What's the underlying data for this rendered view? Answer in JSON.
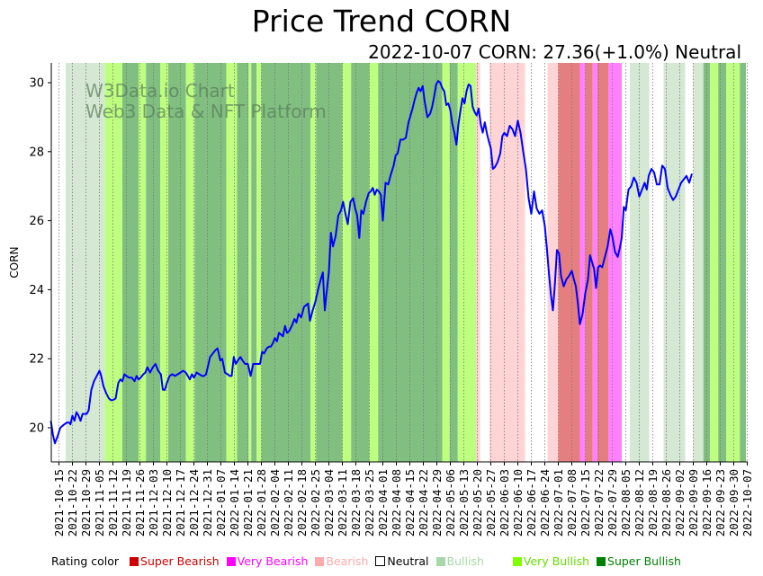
{
  "title": "Price Trend CORN",
  "subtitle": "2022-10-07 CORN: 27.36(+1.0%) Neutral",
  "watermark": [
    "W3Data.io Chart",
    "Web3 Data & NFT Platform"
  ],
  "legend": {
    "label": "Rating color",
    "items": [
      {
        "name": "Super Bearish",
        "color": "#cc0000",
        "text_color": "#cc0000"
      },
      {
        "name": "Very Bearish",
        "color": "#ff00ff",
        "text_color": "#ff00ff"
      },
      {
        "name": "Bearish",
        "color": "#ffaaaa",
        "text_color": "#ffaaaa"
      },
      {
        "name": "Neutral",
        "color": "#ffffff",
        "text_color": "#000000"
      },
      {
        "name": "Bullish",
        "color": "#a8d8a8",
        "text_color": "#a8d8a8"
      },
      {
        "name": "Very Bullish",
        "color": "#80ff00",
        "text_color": "#66dd00"
      },
      {
        "name": "Super Bullish",
        "color": "#008000",
        "text_color": "#008000"
      }
    ]
  },
  "chart_data": {
    "type": "line",
    "title": "Price Trend CORN",
    "xlabel": "",
    "ylabel": "CORN",
    "ylim": [
      19,
      30.6
    ],
    "yticks": [
      20,
      22,
      24,
      26,
      28,
      30
    ],
    "xlim": [
      "2021-10-10",
      "2022-10-07"
    ],
    "xticks": [
      "2021-10-15",
      "2021-10-22",
      "2021-10-29",
      "2021-11-05",
      "2021-11-12",
      "2021-11-19",
      "2021-11-26",
      "2021-12-03",
      "2021-12-10",
      "2021-12-17",
      "2021-12-24",
      "2021-12-31",
      "2022-01-07",
      "2022-01-14",
      "2022-01-21",
      "2022-01-28",
      "2022-02-04",
      "2022-02-11",
      "2022-02-18",
      "2022-02-25",
      "2022-03-04",
      "2022-03-11",
      "2022-03-18",
      "2022-03-25",
      "2022-04-01",
      "2022-04-08",
      "2022-04-15",
      "2022-04-22",
      "2022-04-29",
      "2022-05-06",
      "2022-05-13",
      "2022-05-20",
      "2022-05-27",
      "2022-06-03",
      "2022-06-10",
      "2022-06-17",
      "2022-06-24",
      "2022-07-01",
      "2022-07-08",
      "2022-07-15",
      "2022-07-22",
      "2022-07-29",
      "2022-08-05",
      "2022-08-12",
      "2022-08-19",
      "2022-08-26",
      "2022-09-02",
      "2022-09-09",
      "2022-09-16",
      "2022-09-23",
      "2022-09-30",
      "2022-10-07"
    ],
    "grid": "vertical dotted at x ticks",
    "series": [
      {
        "name": "CORN",
        "color": "#0000ff",
        "x_weeks": [
          -0.6,
          -0.45,
          -0.3,
          -0.1,
          0.1,
          0.4,
          0.6,
          0.75,
          0.85,
          1.0,
          1.15,
          1.3,
          1.45,
          1.6,
          1.75,
          1.9,
          2.05,
          2.2,
          2.4,
          2.6,
          2.8,
          3.0,
          3.1,
          3.3,
          3.5,
          3.7,
          3.85,
          4.0,
          4.2,
          4.4,
          4.55,
          4.7,
          4.85,
          5.0,
          5.2,
          5.4,
          5.6,
          5.75,
          5.9,
          6.05,
          6.25,
          6.4,
          6.55,
          6.75,
          6.95,
          7.15,
          7.35,
          7.55,
          7.7,
          7.85,
          8.0,
          8.2,
          8.4,
          8.6,
          8.8,
          9.0,
          9.2,
          9.4,
          9.55,
          9.7,
          9.85,
          10.0,
          10.2,
          10.4,
          10.6,
          10.75,
          10.9,
          11.05,
          11.2,
          11.4,
          11.6,
          11.75,
          11.95,
          12.1,
          12.3,
          12.5,
          12.65,
          12.8,
          12.95,
          13.1,
          13.25,
          13.45,
          13.6,
          13.8,
          14.0,
          14.2,
          14.4,
          14.6,
          14.75,
          14.9,
          15.05,
          15.2,
          15.4,
          15.55,
          15.7,
          15.85,
          16.0,
          16.15,
          16.3,
          16.45,
          16.6,
          16.75,
          16.9,
          17.05,
          17.25,
          17.45,
          17.6,
          17.75,
          17.95,
          18.15,
          18.3,
          18.45,
          18.6,
          18.8,
          19.0,
          19.2,
          19.4,
          19.55,
          19.7,
          19.85,
          20.0,
          20.15,
          20.3,
          20.5,
          20.7,
          20.9,
          21.05,
          21.2,
          21.4,
          21.6,
          21.8,
          21.95,
          22.1,
          22.25,
          22.4,
          22.55,
          22.75,
          22.95,
          23.1,
          23.25,
          23.4,
          23.55,
          23.7,
          23.85,
          24.0,
          24.2,
          24.4,
          24.6,
          24.8,
          24.95,
          25.1,
          25.3,
          25.5,
          25.7,
          25.9,
          26.05,
          26.2,
          26.35,
          26.5,
          26.65,
          26.8,
          26.95,
          27.1,
          27.3,
          27.5,
          27.65,
          27.8,
          27.95,
          28.1,
          28.25,
          28.4,
          28.55,
          28.7,
          28.85,
          29.0,
          29.15,
          29.3,
          29.45,
          29.6,
          29.75,
          29.9,
          30.05,
          30.2,
          30.35,
          30.5,
          30.65,
          30.8,
          30.95,
          31.1,
          31.25,
          31.4,
          31.55,
          31.7,
          31.85,
          32.0,
          32.15,
          32.3,
          32.5,
          32.7,
          32.85,
          33.0,
          33.2,
          33.4,
          33.6,
          33.8,
          34.0,
          34.2,
          34.4,
          34.6,
          34.8,
          35.0,
          35.2,
          35.4,
          35.6,
          35.8,
          36.0,
          36.15,
          36.3,
          36.45,
          36.6,
          36.75,
          36.9,
          37.05,
          37.2,
          37.4,
          37.6,
          37.8,
          38.0,
          38.15,
          38.3,
          38.45,
          38.6,
          38.8,
          39.0,
          39.2,
          39.35,
          39.5,
          39.65,
          39.8,
          39.95,
          40.1,
          40.25,
          40.45,
          40.65,
          40.85,
          41.0,
          41.2,
          41.4,
          41.55,
          41.7,
          41.85,
          42.0,
          42.2,
          42.4,
          42.6,
          42.8,
          43.0,
          43.2,
          43.4,
          43.55,
          43.7,
          43.9,
          44.1,
          44.3,
          44.5,
          44.7,
          44.9,
          45.1,
          45.3,
          45.5,
          45.7,
          45.9,
          46.1,
          46.3,
          46.5,
          46.7,
          46.9,
          47.1,
          47.3,
          47.5,
          47.7,
          47.9,
          48.1,
          48.3,
          48.5,
          48.7,
          48.9,
          49.1,
          49.3,
          49.5,
          49.7,
          49.9,
          50.1,
          50.3,
          50.5,
          50.7,
          50.9,
          51.05,
          51.2,
          51.35,
          51.5,
          51.65,
          51.8,
          51.95
        ],
        "values": [
          20.2,
          19.8,
          19.55,
          19.75,
          20.0,
          20.1,
          20.15,
          20.15,
          20.1,
          20.35,
          20.2,
          20.45,
          20.35,
          20.2,
          20.4,
          20.4,
          20.4,
          20.5,
          21.1,
          21.35,
          21.5,
          21.65,
          21.55,
          21.2,
          21.0,
          20.85,
          20.8,
          20.8,
          20.85,
          21.3,
          21.4,
          21.35,
          21.55,
          21.5,
          21.45,
          21.45,
          21.35,
          21.5,
          21.4,
          21.45,
          21.55,
          21.6,
          21.75,
          21.6,
          21.75,
          21.85,
          21.65,
          21.55,
          21.1,
          21.1,
          21.3,
          21.5,
          21.55,
          21.5,
          21.55,
          21.6,
          21.65,
          21.6,
          21.5,
          21.4,
          21.55,
          21.45,
          21.6,
          21.55,
          21.5,
          21.5,
          21.55,
          21.8,
          22.05,
          22.15,
          22.25,
          22.3,
          21.95,
          22.0,
          21.6,
          21.55,
          21.5,
          21.5,
          22.05,
          21.85,
          21.95,
          22.05,
          21.95,
          21.85,
          21.85,
          21.5,
          21.85,
          21.85,
          21.85,
          21.85,
          22.2,
          22.15,
          22.3,
          22.35,
          22.35,
          22.45,
          22.6,
          22.5,
          22.75,
          22.7,
          22.65,
          22.95,
          22.75,
          22.8,
          22.95,
          23.15,
          23.05,
          23.3,
          23.2,
          23.5,
          23.55,
          23.6,
          23.1,
          23.4,
          23.65,
          24.0,
          24.3,
          24.5,
          23.4,
          24.0,
          24.5,
          25.65,
          25.25,
          25.55,
          26.15,
          26.3,
          26.55,
          26.25,
          25.9,
          26.55,
          26.65,
          26.35,
          26.15,
          25.5,
          26.3,
          26.2,
          26.55,
          26.8,
          26.85,
          26.95,
          26.75,
          26.9,
          26.85,
          26.75,
          26.0,
          27.1,
          27.05,
          27.35,
          27.6,
          27.9,
          27.95,
          28.35,
          28.35,
          28.4,
          28.85,
          29.05,
          29.25,
          29.5,
          29.7,
          29.85,
          29.75,
          29.9,
          29.45,
          29.0,
          29.1,
          29.3,
          29.6,
          29.95,
          30.05,
          30.0,
          29.85,
          29.75,
          29.35,
          29.4,
          29.2,
          28.8,
          28.55,
          28.2,
          28.8,
          29.2,
          29.55,
          29.4,
          29.75,
          29.95,
          29.9,
          29.3,
          29.15,
          29.05,
          29.25,
          28.8,
          28.55,
          28.85,
          28.55,
          28.3,
          28.1,
          27.5,
          27.55,
          27.7,
          27.95,
          28.45,
          28.55,
          28.45,
          28.75,
          28.65,
          28.45,
          28.9,
          28.55,
          28.0,
          27.5,
          26.65,
          26.2,
          26.85,
          26.35,
          26.2,
          26.3,
          25.85,
          25.2,
          24.5,
          23.85,
          23.4,
          24.2,
          25.15,
          25.05,
          24.4,
          24.1,
          24.3,
          24.4,
          24.55,
          24.3,
          24.1,
          23.6,
          23.0,
          23.3,
          23.9,
          24.3,
          25.0,
          24.8,
          24.6,
          24.05,
          24.65,
          24.7,
          24.65,
          24.95,
          25.25,
          25.75,
          25.55,
          25.1,
          24.95,
          25.2,
          25.5,
          26.4,
          26.3,
          26.9,
          27.0,
          27.25,
          27.1,
          26.7,
          26.9,
          27.1,
          26.9,
          27.3,
          27.5,
          27.4,
          27.05,
          27.05,
          27.6,
          27.5,
          26.95,
          26.75,
          26.6,
          26.7,
          26.9,
          27.1,
          27.2,
          27.3,
          27.1,
          27.36
        ]
      }
    ],
    "rating_bands": [
      {
        "start_week": -0.85,
        "end_week": 0.5,
        "rating": "Neutral"
      },
      {
        "start_week": 0.5,
        "end_week": 3.4,
        "rating": "Bullish"
      },
      {
        "start_week": 3.4,
        "end_week": 4.7,
        "rating": "Very Bullish"
      },
      {
        "start_week": 4.7,
        "end_week": 5.9,
        "rating": "Super Bullish"
      },
      {
        "start_week": 5.9,
        "end_week": 6.45,
        "rating": "Very Bullish"
      },
      {
        "start_week": 6.45,
        "end_week": 7.5,
        "rating": "Super Bullish"
      },
      {
        "start_week": 7.5,
        "end_week": 8.1,
        "rating": "Very Bullish"
      },
      {
        "start_week": 8.1,
        "end_week": 9.4,
        "rating": "Super Bullish"
      },
      {
        "start_week": 9.4,
        "end_week": 10.05,
        "rating": "Very Bullish"
      },
      {
        "start_week": 10.05,
        "end_week": 12.4,
        "rating": "Super Bullish"
      },
      {
        "start_week": 12.4,
        "end_week": 13.2,
        "rating": "Very Bullish"
      },
      {
        "start_week": 13.2,
        "end_week": 14.05,
        "rating": "Super Bullish"
      },
      {
        "start_week": 14.05,
        "end_week": 14.25,
        "rating": "Very Bullish"
      },
      {
        "start_week": 14.25,
        "end_week": 14.65,
        "rating": "Super Bullish"
      },
      {
        "start_week": 14.65,
        "end_week": 15.0,
        "rating": "Very Bullish"
      },
      {
        "start_week": 15.0,
        "end_week": 18.65,
        "rating": "Super Bullish"
      },
      {
        "start_week": 18.65,
        "end_week": 19.05,
        "rating": "Very Bullish"
      },
      {
        "start_week": 19.05,
        "end_week": 21.0,
        "rating": "Super Bullish"
      },
      {
        "start_week": 21.0,
        "end_week": 21.65,
        "rating": "Very Bullish"
      },
      {
        "start_week": 21.65,
        "end_week": 23.0,
        "rating": "Super Bullish"
      },
      {
        "start_week": 23.0,
        "end_week": 23.65,
        "rating": "Very Bullish"
      },
      {
        "start_week": 23.65,
        "end_week": 28.4,
        "rating": "Super Bullish"
      },
      {
        "start_week": 28.4,
        "end_week": 28.95,
        "rating": "Very Bullish"
      },
      {
        "start_week": 28.95,
        "end_week": 29.55,
        "rating": "Super Bullish"
      },
      {
        "start_week": 29.55,
        "end_week": 30.9,
        "rating": "Very Bullish"
      },
      {
        "start_week": 30.9,
        "end_week": 31.2,
        "rating": "Bearish"
      },
      {
        "start_week": 31.2,
        "end_week": 31.9,
        "rating": "Neutral"
      },
      {
        "start_week": 31.9,
        "end_week": 34.55,
        "rating": "Bearish"
      },
      {
        "start_week": 34.55,
        "end_week": 36.2,
        "rating": "Neutral"
      },
      {
        "start_week": 36.2,
        "end_week": 37.0,
        "rating": "Bearish"
      },
      {
        "start_week": 37.0,
        "end_week": 38.6,
        "rating": "Super Bearish"
      },
      {
        "start_week": 38.6,
        "end_week": 39.0,
        "rating": "Very Bearish"
      },
      {
        "start_week": 39.0,
        "end_week": 39.55,
        "rating": "Super Bearish"
      },
      {
        "start_week": 39.55,
        "end_week": 39.9,
        "rating": "Very Bearish"
      },
      {
        "start_week": 39.9,
        "end_week": 40.7,
        "rating": "Super Bearish"
      },
      {
        "start_week": 40.7,
        "end_week": 41.7,
        "rating": "Very Bearish"
      },
      {
        "start_week": 41.7,
        "end_week": 42.3,
        "rating": "Neutral"
      },
      {
        "start_week": 42.3,
        "end_week": 43.75,
        "rating": "Bullish"
      },
      {
        "start_week": 43.75,
        "end_week": 44.8,
        "rating": "Neutral"
      },
      {
        "start_week": 44.8,
        "end_week": 46.4,
        "rating": "Bullish"
      },
      {
        "start_week": 46.4,
        "end_week": 47.0,
        "rating": "Neutral"
      },
      {
        "start_week": 47.0,
        "end_week": 47.75,
        "rating": "Bullish"
      },
      {
        "start_week": 47.75,
        "end_week": 48.25,
        "rating": "Super Bullish"
      },
      {
        "start_week": 48.25,
        "end_week": 48.85,
        "rating": "Very Bullish"
      },
      {
        "start_week": 48.85,
        "end_week": 49.45,
        "rating": "Super Bullish"
      },
      {
        "start_week": 49.45,
        "end_week": 50.45,
        "rating": "Very Bullish"
      },
      {
        "start_week": 50.45,
        "end_week": 50.9,
        "rating": "Super Bullish"
      },
      {
        "start_week": 50.9,
        "end_week": 52.0,
        "rating": "Neutral"
      }
    ],
    "band_colors": {
      "Super Bearish": "#e57f7f",
      "Very Bearish": "#ff80ff",
      "Bearish": "#ffd4d4",
      "Neutral": "#ffffff",
      "Bullish": "#d4e8d4",
      "Very Bullish": "#bfff7f",
      "Super Bullish": "#80bf80"
    }
  }
}
